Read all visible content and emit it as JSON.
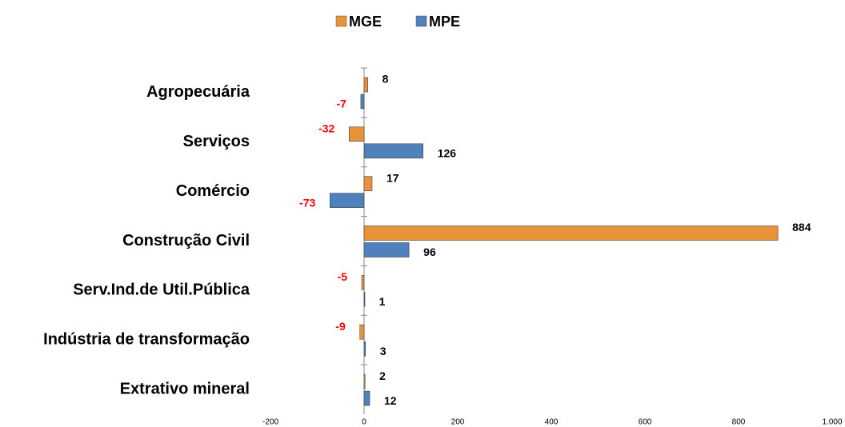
{
  "chart_data": {
    "type": "hbar",
    "categories": [
      "Agropecuária",
      "Serviços",
      "Comércio",
      "Construção Civil",
      "Serv.Ind.de Util.Pública",
      "Indústria de transformação",
      "Extrativo mineral"
    ],
    "series": [
      {
        "name": "MGE",
        "color": "#e8923a",
        "values": [
          8,
          -32,
          17,
          884,
          -5,
          -9,
          2
        ]
      },
      {
        "name": "MPE",
        "color": "#4f81bd",
        "values": [
          -7,
          126,
          -73,
          96,
          1,
          3,
          12
        ]
      }
    ],
    "xlim": [
      -200,
      1000
    ],
    "xticks": [
      -200,
      0,
      200,
      400,
      600,
      800,
      {
        "value": 1000,
        "label": "1.000"
      }
    ],
    "negative_label_color": "#ff0000",
    "legend": "top"
  }
}
